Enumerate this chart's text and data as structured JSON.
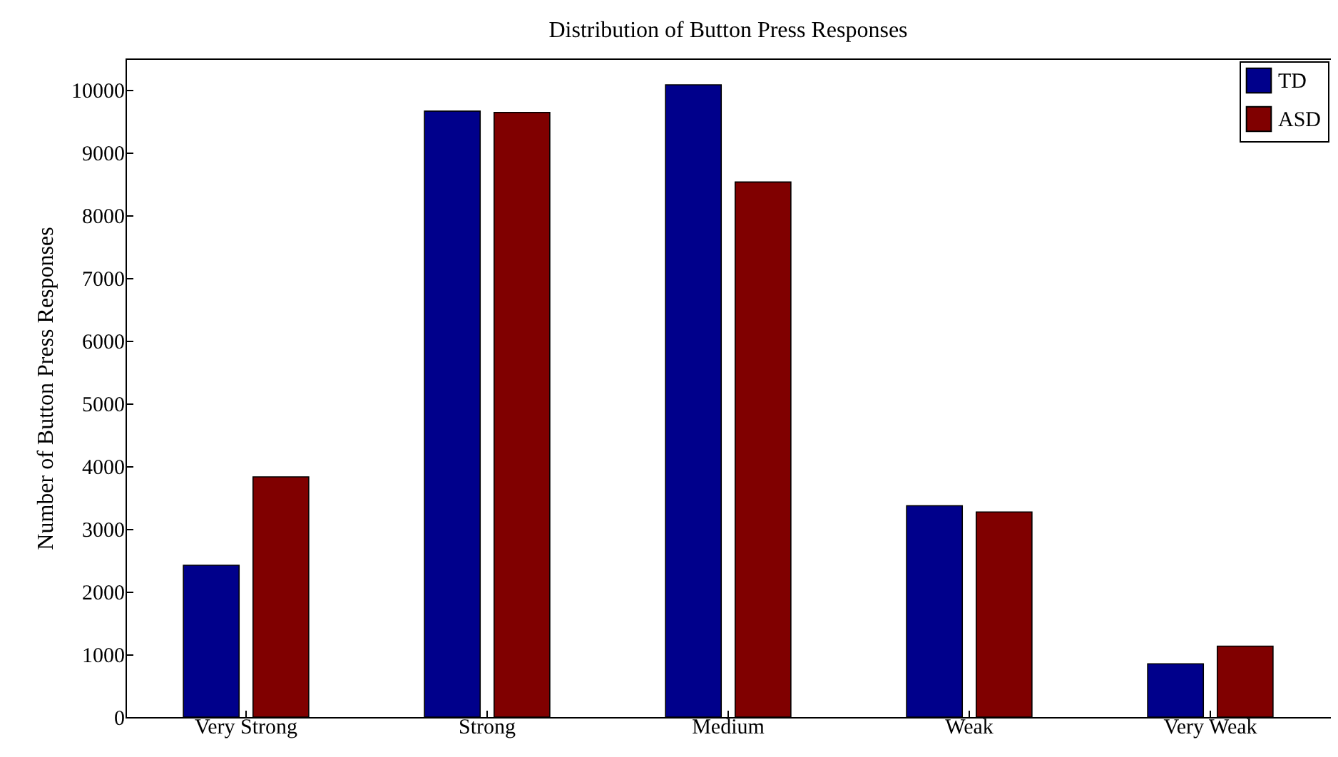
{
  "chart_data": {
    "type": "bar",
    "title": "Distribution of Button Press Responses",
    "ylabel": "Number of Button Press Responses",
    "categories": [
      "Very Strong",
      "Strong",
      "Medium",
      "Weak",
      "Very Weak"
    ],
    "series": [
      {
        "name": "TD",
        "color": "#00008b",
        "values": [
          2420,
          9660,
          10080,
          3370,
          850
        ]
      },
      {
        "name": "ASD",
        "color": "#800000",
        "values": [
          3830,
          9640,
          8530,
          3270,
          1130
        ]
      }
    ],
    "ylim": [
      0,
      10500
    ],
    "yticks": [
      0,
      1000,
      2000,
      3000,
      4000,
      5000,
      6000,
      7000,
      8000,
      9000,
      10000
    ],
    "legend": "top right"
  }
}
